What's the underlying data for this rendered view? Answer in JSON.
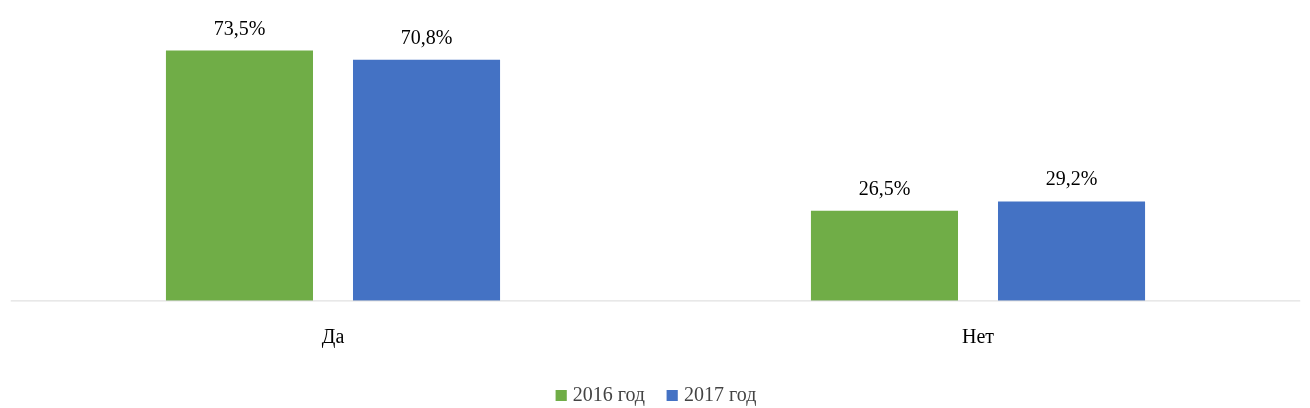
{
  "chart_data": {
    "type": "bar",
    "categories": [
      "Да",
      "Нет"
    ],
    "legend": "bottom",
    "series": [
      {
        "name": "2016 год",
        "color": "#70ad47",
        "values": [
          73.5,
          26.5
        ],
        "value_labels": [
          "73,5%",
          "26,5%"
        ]
      },
      {
        "name": "2017 год",
        "color": "#4472c4",
        "values": [
          70.8,
          29.2
        ],
        "value_labels": [
          "70,8%",
          "29,2%"
        ]
      }
    ]
  }
}
